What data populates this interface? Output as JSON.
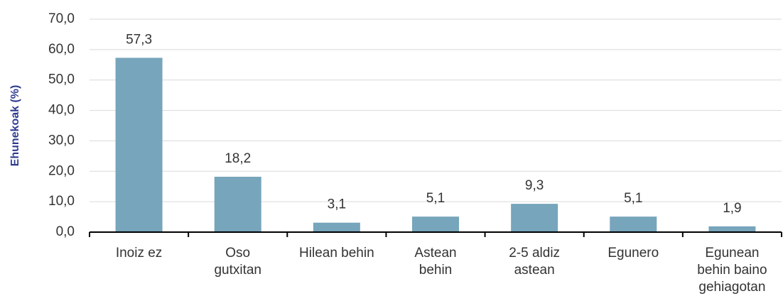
{
  "chart_data": {
    "type": "bar",
    "y_axis_label": "Ehunekoak (%)",
    "categories": [
      "Inoiz ez",
      "Oso\ngutxitan",
      "Hilean behin",
      "Astean\nbehin",
      "2-5 aldiz\nastean",
      "Egunero",
      "Egunean\nbehin baino\ngehiagotan"
    ],
    "values": [
      57.3,
      18.2,
      3.1,
      5.1,
      9.3,
      5.1,
      1.9
    ],
    "value_labels": [
      "57,3",
      "18,2",
      "3,1",
      "5,1",
      "9,3",
      "5,1",
      "1,9"
    ],
    "color": "#77a5bb",
    "ylim": [
      0,
      70
    ],
    "yticks": [
      {
        "value": 0,
        "label": "0,0"
      },
      {
        "value": 10,
        "label": "10,0"
      },
      {
        "value": 20,
        "label": "20,0"
      },
      {
        "value": 30,
        "label": "30,0"
      },
      {
        "value": 40,
        "label": "40,0"
      },
      {
        "value": 50,
        "label": "50,0"
      },
      {
        "value": 60,
        "label": "60,0"
      },
      {
        "value": 70,
        "label": "70,0"
      }
    ],
    "grid": true
  }
}
